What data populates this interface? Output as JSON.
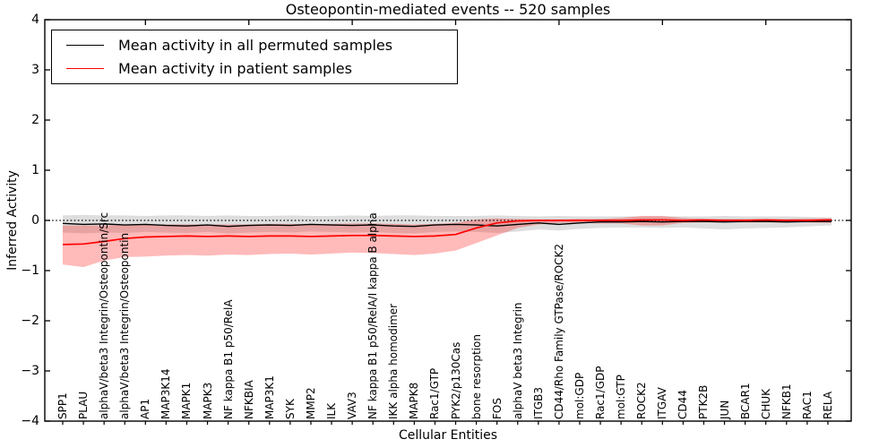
{
  "title": "Osteopontin-mediated events -- 520 samples",
  "x_axis_label": "Cellular Entities",
  "y_axis_label": "Inferred Activity",
  "y_tick_labels": [
    "4",
    "3",
    "2",
    "1",
    "0",
    "−1",
    "−2",
    "−3",
    "−4"
  ],
  "legend": {
    "items": [
      {
        "label": "Mean activity in all permuted samples",
        "color": "#000000"
      },
      {
        "label": "Mean activity in patient samples",
        "color": "#ff0000"
      }
    ]
  },
  "colors": {
    "permuted_line": "#000000",
    "permuted_band": "rgba(0,0,0,0.13)",
    "patient_line": "#ff0000",
    "patient_band": "rgba(255,0,0,0.27)",
    "zero_line": "#000000",
    "spine": "#000000"
  },
  "chart_data": {
    "type": "line",
    "title": "Osteopontin-mediated events -- 520 samples",
    "xlabel": "Cellular Entities",
    "ylabel": "Inferred Activity",
    "ylim": [
      -4,
      4
    ],
    "grid": false,
    "legend_position": "upper left",
    "zero_reference_line": true,
    "categories": [
      "SPP1",
      "PLAU",
      "alphaV/beta3 Integrin/Osteopontin/Src",
      "alphaV/beta3 Integrin/Osteopontin",
      "AP1",
      "MAP3K14",
      "MAPK1",
      "MAPK3",
      "NF kappa B1 p50/RelA",
      "NFKBIA",
      "MAP3K1",
      "SYK",
      "MMP2",
      "ILK",
      "VAV3",
      "NF kappa B1 p50/RelA/I kappa B alpha",
      "IKK alpha homodimer",
      "MAPK8",
      "Rac1/GTP",
      "PYK2/p130Cas",
      "bone resorption",
      "FOS",
      "alphaV beta3 Integrin",
      "ITGB3",
      "CD44/Rho Family GTPase/ROCK2",
      "mol:GDP",
      "Rac1/GDP",
      "mol:GTP",
      "ROCK2",
      "ITGAV",
      "CD44",
      "PTK2B",
      "JUN",
      "BCAR1",
      "CHUK",
      "NFKB1",
      "RAC1",
      "RELA"
    ],
    "series": [
      {
        "name": "Mean activity in all permuted samples",
        "color": "#000000",
        "band_color": "rgba(0,0,0,0.13)",
        "values": [
          -0.06,
          -0.08,
          -0.07,
          -0.09,
          -0.08,
          -0.1,
          -0.11,
          -0.09,
          -0.12,
          -0.1,
          -0.09,
          -0.1,
          -0.08,
          -0.09,
          -0.1,
          -0.09,
          -0.11,
          -0.12,
          -0.09,
          -0.08,
          -0.09,
          -0.11,
          -0.08,
          -0.05,
          -0.08,
          -0.05,
          -0.03,
          -0.03,
          -0.02,
          -0.03,
          -0.02,
          -0.02,
          -0.03,
          -0.02,
          -0.02,
          -0.03,
          -0.02,
          -0.02
        ],
        "band_upper": [
          0.1,
          0.11,
          0.1,
          0.1,
          0.09,
          0.1,
          0.1,
          0.09,
          0.1,
          0.09,
          0.09,
          0.1,
          0.09,
          0.09,
          0.1,
          0.09,
          0.1,
          0.1,
          0.09,
          0.09,
          0.09,
          0.1,
          0.09,
          0.08,
          0.09,
          0.08,
          0.08,
          0.08,
          0.08,
          0.08,
          0.08,
          0.08,
          0.09,
          0.08,
          0.08,
          0.08,
          0.07,
          0.06
        ],
        "band_lower": [
          -0.24,
          -0.26,
          -0.24,
          -0.25,
          -0.23,
          -0.24,
          -0.25,
          -0.23,
          -0.26,
          -0.24,
          -0.23,
          -0.24,
          -0.22,
          -0.23,
          -0.24,
          -0.23,
          -0.25,
          -0.26,
          -0.23,
          -0.22,
          -0.23,
          -0.25,
          -0.22,
          -0.18,
          -0.2,
          -0.17,
          -0.15,
          -0.14,
          -0.14,
          -0.15,
          -0.14,
          -0.16,
          -0.18,
          -0.16,
          -0.15,
          -0.14,
          -0.12,
          -0.1
        ]
      },
      {
        "name": "Mean activity in patient samples",
        "color": "#ff0000",
        "band_color": "rgba(255,0,0,0.27)",
        "values": [
          -0.48,
          -0.47,
          -0.42,
          -0.36,
          -0.33,
          -0.32,
          -0.31,
          -0.32,
          -0.31,
          -0.32,
          -0.31,
          -0.31,
          -0.32,
          -0.31,
          -0.3,
          -0.3,
          -0.31,
          -0.32,
          -0.31,
          -0.28,
          -0.15,
          -0.05,
          -0.01,
          0.0,
          0.0,
          0.0,
          0.0,
          0.0,
          0.01,
          0.01,
          0.0,
          0.01,
          0.0,
          0.0,
          0.01,
          0.0,
          0.0,
          0.01
        ],
        "band_upper": [
          -0.1,
          -0.1,
          -0.1,
          -0.09,
          -0.08,
          -0.08,
          -0.08,
          -0.08,
          -0.08,
          -0.08,
          -0.07,
          -0.07,
          -0.08,
          -0.07,
          -0.06,
          -0.06,
          -0.07,
          -0.08,
          -0.07,
          -0.05,
          0.02,
          0.04,
          0.03,
          0.02,
          0.02,
          0.03,
          0.03,
          0.05,
          0.09,
          0.09,
          0.05,
          0.03,
          0.03,
          0.03,
          0.03,
          0.03,
          0.04,
          0.04
        ],
        "band_lower": [
          -0.88,
          -0.93,
          -0.8,
          -0.73,
          -0.72,
          -0.7,
          -0.69,
          -0.7,
          -0.68,
          -0.69,
          -0.67,
          -0.66,
          -0.68,
          -0.66,
          -0.64,
          -0.65,
          -0.67,
          -0.69,
          -0.66,
          -0.6,
          -0.45,
          -0.3,
          -0.15,
          -0.08,
          -0.05,
          -0.05,
          -0.06,
          -0.06,
          -0.1,
          -0.1,
          -0.05,
          -0.04,
          -0.04,
          -0.04,
          -0.04,
          -0.04,
          -0.04,
          -0.05
        ]
      }
    ]
  }
}
